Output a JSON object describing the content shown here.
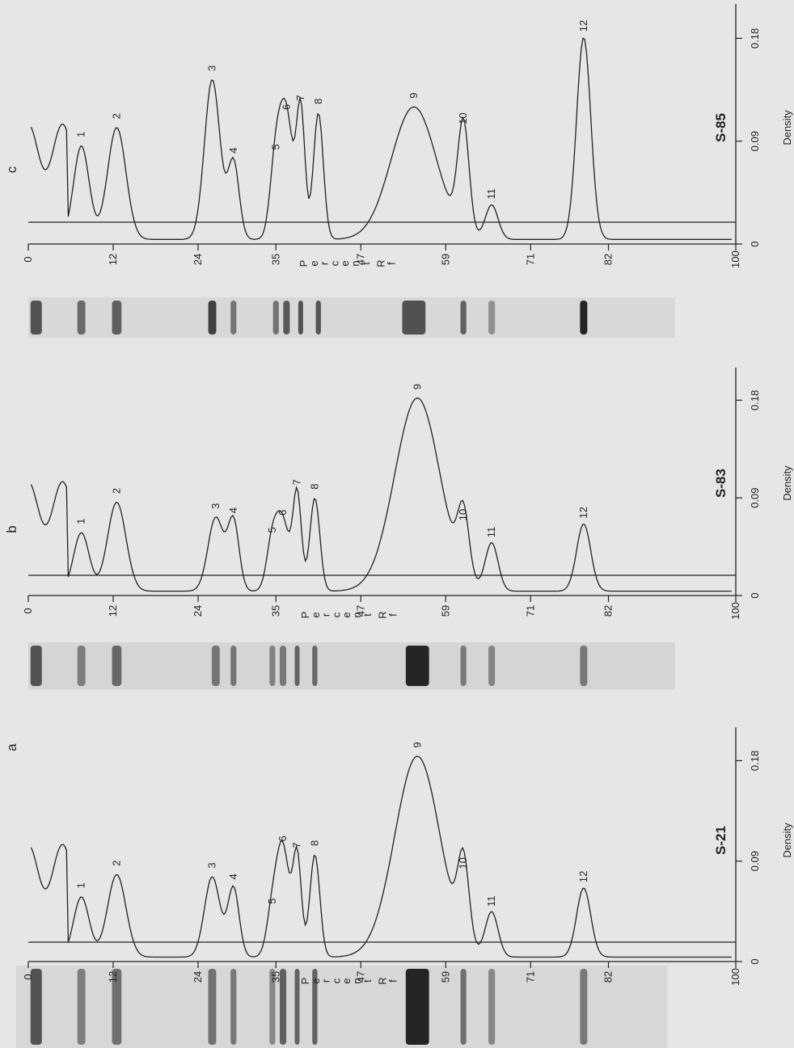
{
  "chart_data": [
    {
      "type": "line",
      "panel": "a",
      "sample": "S-21",
      "x_axis_label": "Percent Rf",
      "y_axis_label": "Density",
      "x_ticks": [
        "0",
        "12",
        "24",
        "35",
        "47",
        "59",
        "71",
        "82",
        "100"
      ],
      "y_ticks": [
        "0",
        "0.09",
        "0.18"
      ],
      "xlim": [
        0,
        100
      ],
      "ylim": [
        0,
        0.21
      ],
      "baseline": 0.018,
      "peak_labels": [
        "1",
        "2",
        "3",
        "4",
        "5",
        "6",
        "7",
        "8",
        "9",
        "10",
        "11",
        "12"
      ],
      "peaks": [
        {
          "label": "1",
          "x": 7.5,
          "y": 0.058
        },
        {
          "label": "2",
          "x": 12.5,
          "y": 0.078
        },
        {
          "label": "3",
          "x": 26.0,
          "y": 0.076
        },
        {
          "label": "4",
          "x": 29.0,
          "y": 0.066
        },
        {
          "label": "5",
          "x": 34.5,
          "y": 0.044
        },
        {
          "label": "6",
          "x": 36.0,
          "y": 0.1
        },
        {
          "label": "7",
          "x": 38.0,
          "y": 0.094
        },
        {
          "label": "8",
          "x": 40.5,
          "y": 0.096
        },
        {
          "label": "9",
          "x": 55.0,
          "y": 0.184
        },
        {
          "label": "10",
          "x": 61.5,
          "y": 0.078
        },
        {
          "label": "11",
          "x": 65.5,
          "y": 0.044
        },
        {
          "label": "12",
          "x": 78.5,
          "y": 0.066
        }
      ]
    },
    {
      "type": "line",
      "panel": "b",
      "sample": "S-83",
      "x_axis_label": "Percent Rf",
      "y_axis_label": "Density",
      "x_ticks": [
        "0",
        "12",
        "24",
        "35",
        "47",
        "59",
        "71",
        "82",
        "100"
      ],
      "y_ticks": [
        "0",
        "0.09",
        "0.18"
      ],
      "xlim": [
        0,
        100
      ],
      "ylim": [
        0,
        0.21
      ],
      "baseline": 0.018,
      "peak_labels": [
        "1",
        "2",
        "3",
        "4",
        "5",
        "6",
        "7",
        "8",
        "9",
        "10",
        "11",
        "12"
      ],
      "peaks": [
        {
          "label": "1",
          "x": 7.5,
          "y": 0.058
        },
        {
          "label": "2",
          "x": 12.5,
          "y": 0.086
        },
        {
          "label": "3",
          "x": 26.5,
          "y": 0.072
        },
        {
          "label": "4",
          "x": 29.0,
          "y": 0.068
        },
        {
          "label": "5",
          "x": 34.5,
          "y": 0.05
        },
        {
          "label": "6",
          "x": 36.0,
          "y": 0.066
        },
        {
          "label": "7",
          "x": 38.0,
          "y": 0.094
        },
        {
          "label": "8",
          "x": 40.5,
          "y": 0.09
        },
        {
          "label": "9",
          "x": 55.0,
          "y": 0.182
        },
        {
          "label": "10",
          "x": 61.5,
          "y": 0.064
        },
        {
          "label": "11",
          "x": 65.5,
          "y": 0.048
        },
        {
          "label": "12",
          "x": 78.5,
          "y": 0.066
        }
      ]
    },
    {
      "type": "line",
      "panel": "c",
      "sample": "S-85",
      "x_axis_label": "Percent Rf",
      "y_axis_label": "Density",
      "x_ticks": [
        "0",
        "12",
        "24",
        "35",
        "47",
        "59",
        "71",
        "82",
        "100"
      ],
      "y_ticks": [
        "0",
        "0.09",
        "0.18"
      ],
      "xlim": [
        0,
        100
      ],
      "ylim": [
        0,
        0.21
      ],
      "baseline": 0.02,
      "peak_labels": [
        "1",
        "2",
        "3",
        "4",
        "5",
        "6",
        "7",
        "8",
        "9",
        "10",
        "11",
        "12"
      ],
      "peaks": [
        {
          "label": "1",
          "x": 7.5,
          "y": 0.086
        },
        {
          "label": "2",
          "x": 12.5,
          "y": 0.102
        },
        {
          "label": "3",
          "x": 26.0,
          "y": 0.144
        },
        {
          "label": "4",
          "x": 29.0,
          "y": 0.072
        },
        {
          "label": "5",
          "x": 35.0,
          "y": 0.075
        },
        {
          "label": "6",
          "x": 36.5,
          "y": 0.11
        },
        {
          "label": "7",
          "x": 38.5,
          "y": 0.118
        },
        {
          "label": "8",
          "x": 41.0,
          "y": 0.115
        },
        {
          "label": "9",
          "x": 54.5,
          "y": 0.12
        },
        {
          "label": "10",
          "x": 61.5,
          "y": 0.1
        },
        {
          "label": "11",
          "x": 65.5,
          "y": 0.034
        },
        {
          "label": "12",
          "x": 78.5,
          "y": 0.181
        }
      ]
    }
  ]
}
